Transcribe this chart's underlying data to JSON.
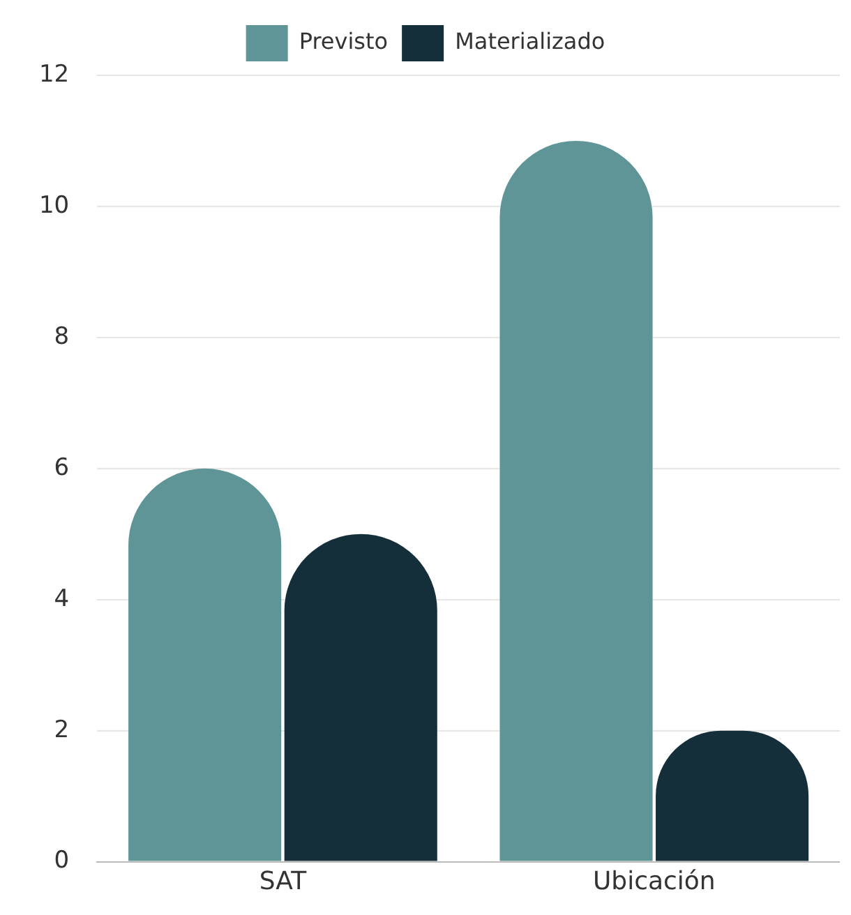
{
  "chart_data": {
    "type": "bar",
    "categories": [
      "SAT",
      "Ubicación"
    ],
    "series": [
      {
        "name": "Previsto",
        "color": "#5f9596",
        "values": [
          6,
          11
        ]
      },
      {
        "name": "Materializado",
        "color": "#142f3a",
        "values": [
          5,
          2
        ]
      }
    ],
    "ylim": [
      0,
      12
    ],
    "yticks": [
      0,
      2,
      4,
      6,
      8,
      10,
      12
    ],
    "grid": "y",
    "legend": "top"
  }
}
